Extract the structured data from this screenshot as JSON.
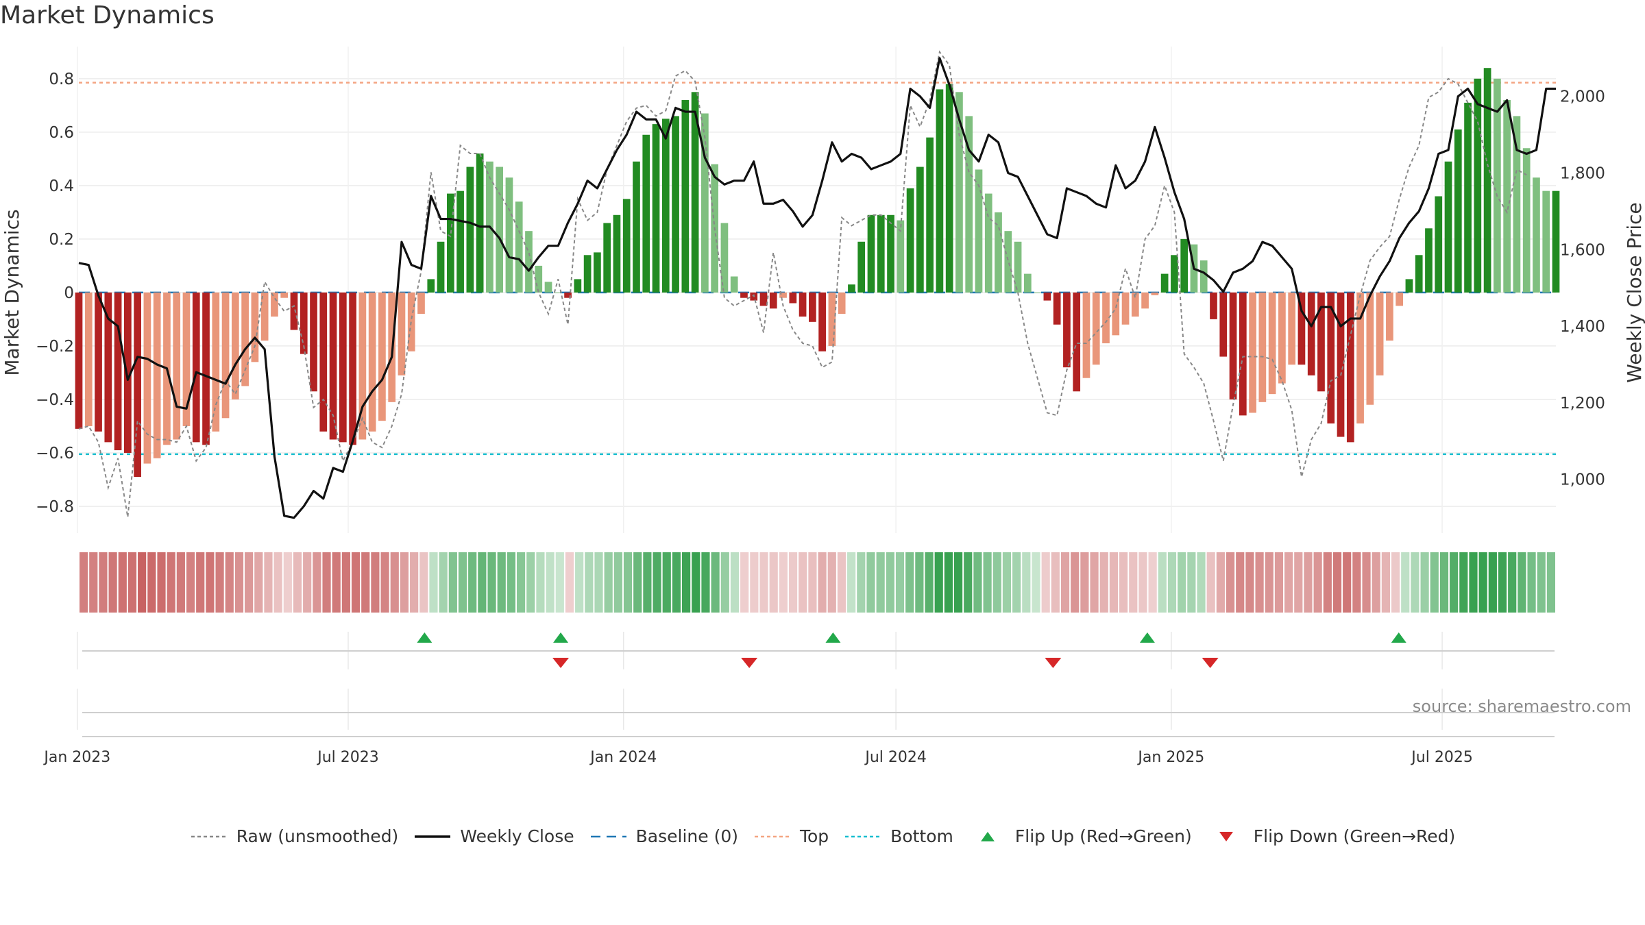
{
  "title": "Market Dynamics",
  "source_text": "source: sharemaestro.com",
  "colors": {
    "strong_green": "#228b22",
    "light_green": "#7fbf7f",
    "strong_red": "#b22222",
    "light_red": "#e9967a",
    "close": "#111111",
    "raw": "#888888",
    "baseline": "#1f77b4",
    "top": "#f4a582",
    "bottom": "#17becf",
    "flip_up": "#22a84a",
    "flip_down": "#d62728"
  },
  "legend": [
    {
      "label": "Raw (unsmoothed)",
      "icon": "dotted-line",
      "color": "#888888"
    },
    {
      "label": "Weekly Close",
      "icon": "solid-line",
      "color": "#111111"
    },
    {
      "label": "Baseline (0)",
      "icon": "dashed-line",
      "color": "#1f77b4"
    },
    {
      "label": "Top",
      "icon": "dotted-line",
      "color": "#f4a582"
    },
    {
      "label": "Bottom",
      "icon": "dotted-line",
      "color": "#17becf"
    },
    {
      "label": "Flip Up (Red→Green)",
      "icon": "triangle-up",
      "color": "#22a84a"
    },
    {
      "label": "Flip Down (Green→Red)",
      "icon": "triangle-down",
      "color": "#d62728"
    }
  ],
  "chart_data": {
    "type": "bar",
    "title": "Market Dynamics",
    "ylabel": "Market Dynamics",
    "y2label": "Weekly Close Price",
    "ylim": [
      -0.9,
      0.92
    ],
    "y2lim": [
      860,
      2130
    ],
    "yticks": [
      -0.8,
      -0.6,
      -0.4,
      -0.2,
      0,
      0.2,
      0.4,
      0.6,
      0.8
    ],
    "ytick_labels": [
      "−0.8",
      "−0.6",
      "−0.4",
      "−0.2",
      "0",
      "0.2",
      "0.4",
      "0.6",
      "0.8"
    ],
    "y2ticks": [
      1000,
      1200,
      1400,
      1600,
      1800,
      2000
    ],
    "y2tick_labels": [
      "1,000",
      "1,200",
      "1,400",
      "1,600",
      "1,800",
      "2,000"
    ],
    "start_date": "2023-01-02",
    "end_date": "2025-09-15",
    "date_ticks": [
      {
        "date": "2023-01-01",
        "label": "Jan 2023"
      },
      {
        "date": "2023-07-01",
        "label": "Jul 2023"
      },
      {
        "date": "2024-01-01",
        "label": "Jan 2024"
      },
      {
        "date": "2024-07-01",
        "label": "Jul 2024"
      },
      {
        "date": "2025-01-01",
        "label": "Jan 2025"
      },
      {
        "date": "2025-07-01",
        "label": "Jul 2025"
      }
    ],
    "top_level": 0.785,
    "bottom_level": -0.605,
    "baseline": 0,
    "grid": true,
    "legend_position": "bottom",
    "series": [
      {
        "name": "Market Dynamics",
        "type": "bar",
        "values": [
          -0.51,
          -0.5,
          -0.52,
          -0.56,
          -0.59,
          -0.6,
          -0.69,
          -0.64,
          -0.62,
          -0.57,
          -0.55,
          -0.5,
          -0.56,
          -0.57,
          -0.52,
          -0.47,
          -0.4,
          -0.35,
          -0.26,
          -0.18,
          -0.09,
          -0.02,
          -0.14,
          -0.23,
          -0.37,
          -0.52,
          -0.55,
          -0.56,
          -0.57,
          -0.55,
          -0.52,
          -0.48,
          -0.41,
          -0.31,
          -0.22,
          -0.08,
          0.05,
          0.19,
          0.37,
          0.38,
          0.47,
          0.52,
          0.49,
          0.47,
          0.43,
          0.34,
          0.23,
          0.1,
          0.04,
          0.0,
          -0.02,
          0.05,
          0.14,
          0.15,
          0.26,
          0.29,
          0.35,
          0.49,
          0.59,
          0.63,
          0.65,
          0.66,
          0.72,
          0.75,
          0.67,
          0.48,
          0.26,
          0.06,
          -0.02,
          -0.03,
          -0.05,
          -0.06,
          -0.02,
          -0.04,
          -0.09,
          -0.11,
          -0.22,
          -0.2,
          -0.08,
          0.03,
          0.19,
          0.29,
          0.29,
          0.29,
          0.27,
          0.39,
          0.47,
          0.58,
          0.76,
          0.78,
          0.75,
          0.66,
          0.46,
          0.37,
          0.3,
          0.23,
          0.19,
          0.07,
          0.0,
          -0.03,
          -0.12,
          -0.28,
          -0.37,
          -0.32,
          -0.27,
          -0.19,
          -0.16,
          -0.12,
          -0.09,
          -0.06,
          -0.01,
          0.07,
          0.14,
          0.2,
          0.18,
          0.12,
          -0.1,
          -0.24,
          -0.4,
          -0.46,
          -0.45,
          -0.41,
          -0.38,
          -0.34,
          -0.27,
          -0.27,
          -0.31,
          -0.37,
          -0.49,
          -0.54,
          -0.56,
          -0.49,
          -0.42,
          -0.31,
          -0.18,
          -0.05,
          0.05,
          0.14,
          0.24,
          0.36,
          0.49,
          0.61,
          0.71,
          0.8,
          0.84,
          0.8,
          0.72,
          0.66,
          0.54,
          0.43,
          0.38,
          0.38
        ]
      },
      {
        "name": "Raw (unsmoothed)",
        "type": "line",
        "values": [
          -0.51,
          -0.5,
          -0.56,
          -0.73,
          -0.62,
          -0.84,
          -0.48,
          -0.53,
          -0.55,
          -0.55,
          -0.56,
          -0.5,
          -0.63,
          -0.58,
          -0.42,
          -0.33,
          -0.38,
          -0.29,
          -0.2,
          0.04,
          -0.02,
          -0.07,
          -0.05,
          -0.2,
          -0.43,
          -0.4,
          -0.46,
          -0.63,
          -0.56,
          -0.47,
          -0.56,
          -0.58,
          -0.5,
          -0.38,
          -0.1,
          0.08,
          0.45,
          0.23,
          0.21,
          0.55,
          0.52,
          0.52,
          0.43,
          0.37,
          0.31,
          0.23,
          0.15,
          0.0,
          -0.08,
          0.05,
          -0.12,
          0.35,
          0.27,
          0.3,
          0.46,
          0.55,
          0.64,
          0.69,
          0.7,
          0.66,
          0.68,
          0.81,
          0.83,
          0.79,
          0.58,
          0.24,
          -0.02,
          -0.05,
          -0.03,
          -0.01,
          -0.15,
          0.15,
          -0.05,
          -0.14,
          -0.19,
          -0.2,
          -0.28,
          -0.26,
          0.28,
          0.25,
          0.27,
          0.29,
          0.29,
          0.26,
          0.23,
          0.7,
          0.62,
          0.72,
          0.9,
          0.85,
          0.59,
          0.45,
          0.4,
          0.28,
          0.25,
          0.12,
          0.0,
          -0.19,
          -0.32,
          -0.45,
          -0.46,
          -0.29,
          -0.19,
          -0.19,
          -0.15,
          -0.11,
          -0.06,
          0.09,
          -0.02,
          0.2,
          0.25,
          0.4,
          0.3,
          -0.23,
          -0.28,
          -0.34,
          -0.48,
          -0.63,
          -0.42,
          -0.24,
          -0.24,
          -0.24,
          -0.25,
          -0.33,
          -0.44,
          -0.69,
          -0.55,
          -0.49,
          -0.33,
          -0.31,
          -0.16,
          -0.01,
          0.12,
          0.17,
          0.21,
          0.35,
          0.47,
          0.55,
          0.73,
          0.75,
          0.8,
          0.78,
          0.71,
          0.64,
          0.48,
          0.36,
          0.3,
          0.46,
          0.44
        ]
      },
      {
        "name": "Weekly Close",
        "type": "line",
        "axis": "right",
        "values": [
          1565,
          1560,
          1480,
          1420,
          1400,
          1260,
          1320,
          1315,
          1300,
          1290,
          1190,
          1185,
          1280,
          1270,
          1260,
          1250,
          1300,
          1340,
          1370,
          1340,
          1060,
          905,
          900,
          930,
          970,
          950,
          1030,
          1020,
          1100,
          1190,
          1230,
          1260,
          1320,
          1620,
          1560,
          1550,
          1740,
          1680,
          1680,
          1675,
          1670,
          1660,
          1660,
          1630,
          1580,
          1575,
          1545,
          1580,
          1610,
          1610,
          1670,
          1720,
          1780,
          1760,
          1810,
          1860,
          1900,
          1960,
          1940,
          1940,
          1890,
          1970,
          1960,
          1960,
          1840,
          1790,
          1770,
          1780,
          1780,
          1830,
          1720,
          1720,
          1730,
          1700,
          1660,
          1690,
          1780,
          1880,
          1830,
          1850,
          1840,
          1810,
          1820,
          1830,
          1850,
          2020,
          2000,
          1970,
          2100,
          2030,
          1940,
          1860,
          1830,
          1900,
          1880,
          1800,
          1790,
          1740,
          1690,
          1640,
          1630,
          1760,
          1750,
          1740,
          1720,
          1710,
          1820,
          1760,
          1780,
          1830,
          1920,
          1840,
          1750,
          1680,
          1550,
          1540,
          1520,
          1490,
          1540,
          1550,
          1570,
          1620,
          1610,
          1580,
          1550,
          1440,
          1400,
          1450,
          1450,
          1400,
          1420,
          1420,
          1480,
          1530,
          1570,
          1630,
          1670,
          1700,
          1760,
          1850,
          1860,
          2000,
          2020,
          1980,
          1970,
          1960,
          1990,
          1860,
          1850,
          1860,
          2020,
          2020
        ]
      },
      {
        "name": "Market Dynamics",
        "type": "heat-strip",
        "values": [
          -0.51,
          -0.5,
          -0.52,
          -0.56,
          -0.59,
          -0.6,
          -0.69,
          -0.64,
          -0.62,
          -0.57,
          -0.55,
          -0.5,
          -0.56,
          -0.57,
          -0.52,
          -0.47,
          -0.4,
          -0.35,
          -0.26,
          -0.18,
          -0.09,
          -0.02,
          -0.14,
          -0.23,
          -0.37,
          -0.52,
          -0.55,
          -0.56,
          -0.57,
          -0.55,
          -0.52,
          -0.48,
          -0.41,
          -0.31,
          -0.22,
          -0.08,
          0.05,
          0.19,
          0.37,
          0.38,
          0.47,
          0.52,
          0.49,
          0.47,
          0.43,
          0.34,
          0.23,
          0.1,
          0.04,
          0.0,
          -0.02,
          0.05,
          0.14,
          0.15,
          0.26,
          0.29,
          0.35,
          0.49,
          0.59,
          0.63,
          0.65,
          0.66,
          0.72,
          0.75,
          0.67,
          0.48,
          0.26,
          0.06,
          -0.02,
          -0.03,
          -0.05,
          -0.06,
          -0.02,
          -0.04,
          -0.09,
          -0.11,
          -0.22,
          -0.2,
          -0.08,
          0.03,
          0.19,
          0.29,
          0.29,
          0.29,
          0.27,
          0.39,
          0.47,
          0.58,
          0.76,
          0.78,
          0.75,
          0.66,
          0.46,
          0.37,
          0.3,
          0.23,
          0.19,
          0.07,
          0.0,
          -0.03,
          -0.12,
          -0.28,
          -0.37,
          -0.32,
          -0.27,
          -0.19,
          -0.16,
          -0.12,
          -0.09,
          -0.06,
          -0.01,
          0.07,
          0.14,
          0.2,
          0.18,
          0.12,
          -0.1,
          -0.24,
          -0.4,
          -0.46,
          -0.45,
          -0.41,
          -0.38,
          -0.34,
          -0.27,
          -0.27,
          -0.31,
          -0.37,
          -0.49,
          -0.54,
          -0.56,
          -0.49,
          -0.42,
          -0.31,
          -0.18,
          -0.05,
          0.05,
          0.14,
          0.24,
          0.36,
          0.49,
          0.61,
          0.71,
          0.8,
          0.84,
          0.8,
          0.72,
          0.66,
          0.54,
          0.43,
          0.38,
          0.38
        ]
      }
    ],
    "flip_up_dates": [
      "2023-08-21",
      "2023-11-20",
      "2024-05-20",
      "2024-12-16",
      "2025-06-02"
    ],
    "flip_down_dates": [
      "2023-11-20",
      "2024-03-25",
      "2024-10-14",
      "2025-01-27"
    ]
  }
}
